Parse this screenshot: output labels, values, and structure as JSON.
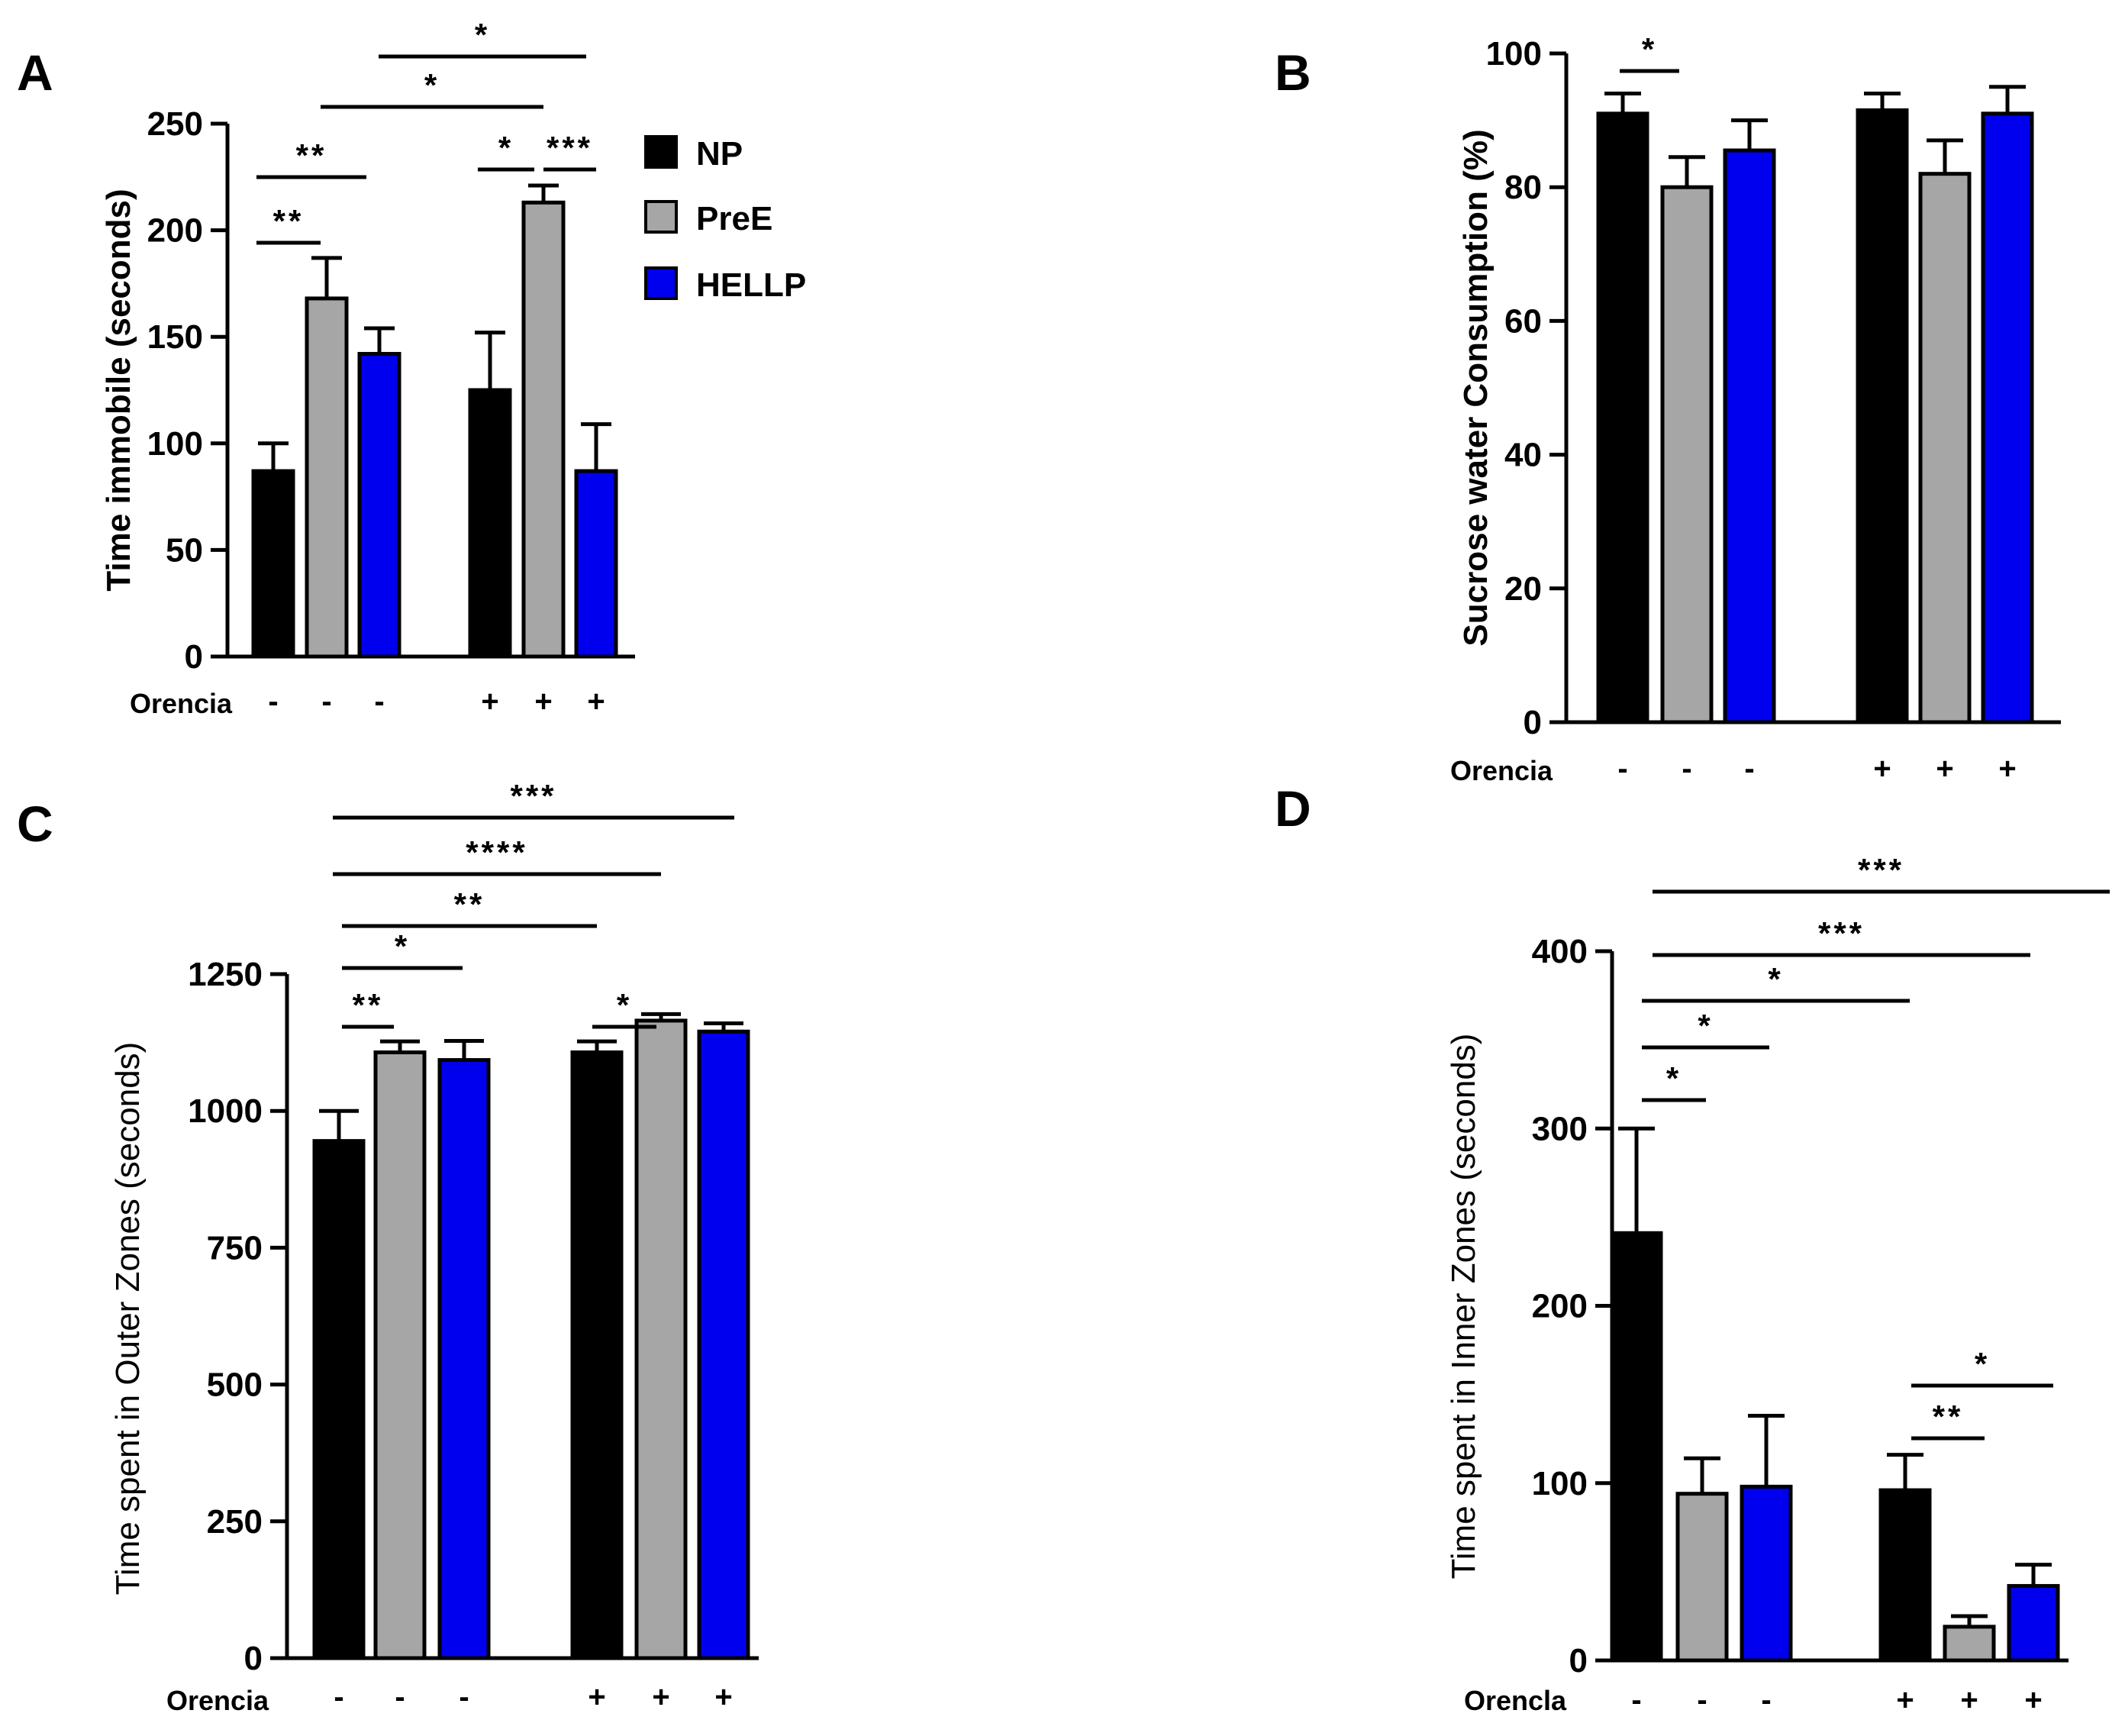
{
  "figure": {
    "legend": [
      {
        "label": "NP",
        "color": "#000000"
      },
      {
        "label": "PreE",
        "color": "#a6a6a6"
      },
      {
        "label": "HELLP",
        "color": "#0000ee"
      }
    ]
  },
  "chart_data": [
    {
      "panel": "A",
      "type": "bar",
      "ylabel": "Time immobile (seconds)",
      "ylim": [
        0,
        250
      ],
      "yticks": [
        0,
        50,
        100,
        150,
        200,
        250
      ],
      "row_label": "Orencia",
      "signs": [
        "-",
        "-",
        "-",
        "+",
        "+",
        "+"
      ],
      "series": [
        {
          "name": "NP",
          "color": "#000000",
          "values": [
            87,
            125
          ],
          "errors": [
            13,
            27
          ]
        },
        {
          "name": "PreE",
          "color": "#a6a6a6",
          "values": [
            168,
            213
          ],
          "errors": [
            19,
            8
          ]
        },
        {
          "name": "HELLP",
          "color": "#0000ee",
          "values": [
            142,
            87
          ],
          "errors": [
            12,
            22
          ]
        }
      ],
      "significance": [
        {
          "from": 0,
          "to": 1,
          "label": "**",
          "level": 1
        },
        {
          "from": 0,
          "to": 2,
          "label": "**",
          "level": 2
        },
        {
          "from": 3,
          "to": 4,
          "label": "*",
          "level": 4
        },
        {
          "from": 4,
          "to": 5,
          "label": "***",
          "level": 4
        },
        {
          "from": 1,
          "to": 4,
          "label": "*",
          "level": 5
        },
        {
          "from": 2,
          "to": 5,
          "label": "*",
          "level": 6
        }
      ]
    },
    {
      "panel": "B",
      "type": "bar",
      "ylabel": "Sucrose water Consumption (%)",
      "ylim": [
        0,
        100
      ],
      "yticks": [
        0,
        20,
        40,
        60,
        80,
        100
      ],
      "row_label": "Orencia",
      "signs": [
        "-",
        "-",
        "-",
        "+",
        "+",
        "+"
      ],
      "series": [
        {
          "name": "NP",
          "color": "#000000",
          "values": [
            91,
            91.5
          ],
          "errors": [
            3,
            2.5
          ]
        },
        {
          "name": "PreE",
          "color": "#a6a6a6",
          "values": [
            80,
            82
          ],
          "errors": [
            4.5,
            5
          ]
        },
        {
          "name": "HELLP",
          "color": "#0000ee",
          "values": [
            85.5,
            91
          ],
          "errors": [
            4.5,
            4
          ]
        }
      ],
      "significance": [
        {
          "from": 0,
          "to": 1,
          "label": "*",
          "level": 1
        }
      ]
    },
    {
      "panel": "C",
      "type": "bar",
      "ylabel": "Time spent in Outer Zones (seconds)",
      "ylim": [
        0,
        1250
      ],
      "yticks": [
        0,
        250,
        500,
        750,
        1000,
        1250
      ],
      "row_label": "Orencia",
      "signs": [
        "-",
        "-",
        "-",
        "+",
        "+",
        "+"
      ],
      "series": [
        {
          "name": "NP",
          "color": "#000000",
          "values": [
            945,
            1107
          ],
          "errors": [
            55,
            20
          ]
        },
        {
          "name": "PreE",
          "color": "#a6a6a6",
          "values": [
            1107,
            1165
          ],
          "errors": [
            20,
            12
          ]
        },
        {
          "name": "HELLP",
          "color": "#0000ee",
          "values": [
            1093,
            1145
          ],
          "errors": [
            35,
            15
          ]
        }
      ],
      "significance": [
        {
          "from": 0,
          "to": 1,
          "label": "**",
          "level": 1
        },
        {
          "from": 3,
          "to": 4,
          "label": "*",
          "level": 1
        },
        {
          "from": 0,
          "to": 2,
          "label": "*",
          "level": 2
        },
        {
          "from": 0,
          "to": 3,
          "label": "**",
          "level": 3
        },
        {
          "from": 0,
          "to": 4,
          "label": "****",
          "level": 4
        },
        {
          "from": 0,
          "to": 5,
          "label": "***",
          "level": 5
        }
      ]
    },
    {
      "panel": "D",
      "type": "bar",
      "ylabel": "Time spent in Inner Zones (seconds)",
      "ylim": [
        0,
        400
      ],
      "yticks": [
        0,
        100,
        200,
        300,
        400
      ],
      "row_label": "Orencla",
      "signs": [
        "-",
        "-",
        "-",
        "+",
        "+",
        "+"
      ],
      "series": [
        {
          "name": "NP",
          "color": "#000000",
          "values": [
            241,
            96
          ],
          "errors": [
            59,
            20
          ]
        },
        {
          "name": "PreE",
          "color": "#a6a6a6",
          "values": [
            94,
            19
          ],
          "errors": [
            20,
            6
          ]
        },
        {
          "name": "HELLP",
          "color": "#0000ee",
          "values": [
            98,
            42
          ],
          "errors": [
            40,
            12
          ]
        }
      ],
      "significance": [
        {
          "from": 0,
          "to": 1,
          "label": "*",
          "level": 1
        },
        {
          "from": 0,
          "to": 2,
          "label": "*",
          "level": 2
        },
        {
          "from": 0,
          "to": 3,
          "label": "*",
          "level": 3
        },
        {
          "from": 0,
          "to": 5,
          "label": "***",
          "level": 4
        },
        {
          "from": 0,
          "to": 6,
          "label": "***",
          "level": 5
        },
        {
          "from": 3,
          "to": 4,
          "label": "**",
          "level": 1
        },
        {
          "from": 3,
          "to": 5,
          "label": "*",
          "level": 2
        }
      ]
    }
  ]
}
